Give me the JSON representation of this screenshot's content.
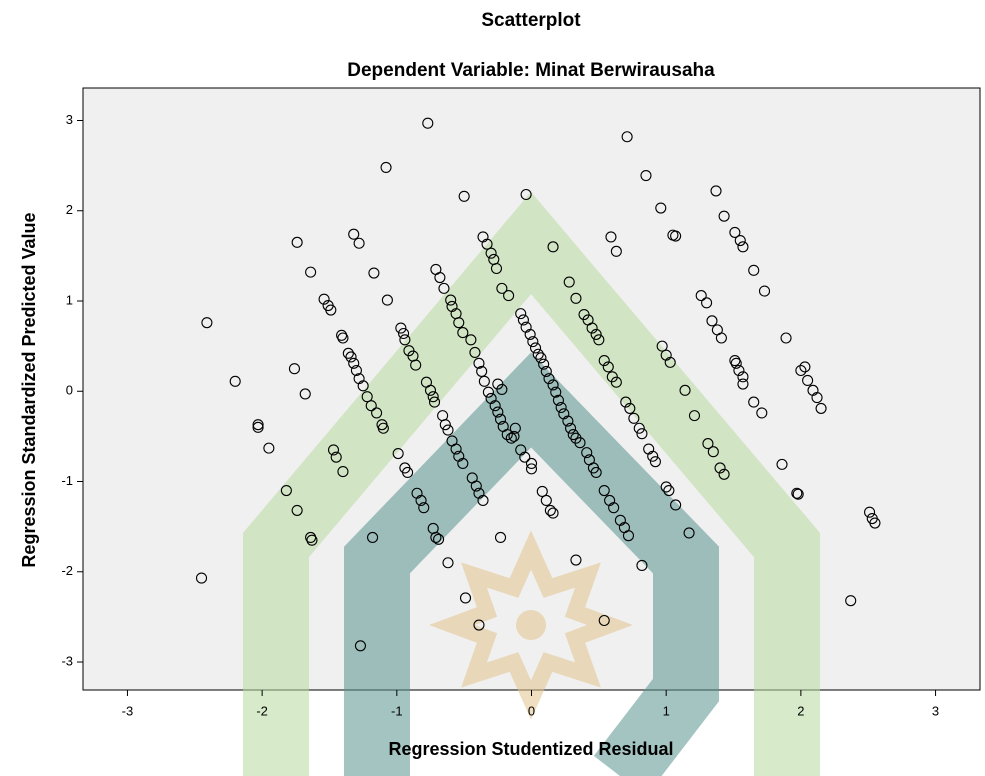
{
  "chart_data": {
    "type": "scatter",
    "title": "Scatterplot",
    "subtitle": "Dependent Variable: Minat Berwirausaha",
    "xlabel": "Regression Studentized Residual",
    "ylabel": "Regression Standardized Predicted Value",
    "marker_color": "#000000",
    "xlim": [
      -3.33,
      3.33
    ],
    "ylim": [
      -3.31,
      3.36
    ],
    "xticks": [
      -3,
      -2,
      -1,
      0,
      1,
      2,
      3
    ],
    "yticks": [
      -3,
      -2,
      -1,
      0,
      1,
      2,
      3
    ],
    "x": [
      -2.41,
      -2.2,
      -2.45,
      -2.03,
      -2.03,
      -1.95,
      -1.82,
      -1.74,
      -1.74,
      -1.64,
      -1.76,
      -1.68,
      -1.64,
      -1.63,
      -1.54,
      -1.51,
      -1.49,
      -1.41,
      -1.4,
      -1.36,
      -1.34,
      -1.32,
      -1.3,
      -1.28,
      -1.25,
      -1.22,
      -1.19,
      -1.15,
      -1.11,
      -1.1,
      -1.47,
      -1.45,
      -1.4,
      -1.32,
      -1.28,
      -1.17,
      -1.07,
      -1.08,
      -1.18,
      -1.27,
      -0.99,
      -0.94,
      -0.92,
      -0.97,
      -0.95,
      -0.94,
      -0.91,
      -0.88,
      -0.86,
      -0.85,
      -0.82,
      -0.8,
      -0.77,
      -0.73,
      -0.71,
      -0.69,
      -0.71,
      -0.68,
      -0.65,
      -0.78,
      -0.75,
      -0.73,
      -0.72,
      -0.62,
      -0.66,
      -0.64,
      -0.62,
      -0.6,
      -0.59,
      -0.56,
      -0.54,
      -0.51,
      -0.59,
      -0.56,
      -0.54,
      -0.51,
      -0.5,
      -0.49,
      -0.45,
      -0.42,
      -0.39,
      -0.37,
      -0.35,
      -0.32,
      -0.44,
      -0.41,
      -0.39,
      -0.36,
      -0.39,
      -0.36,
      -0.33,
      -0.3,
      -0.28,
      -0.26,
      -0.22,
      -0.17,
      -0.3,
      -0.27,
      -0.25,
      -0.23,
      -0.21,
      -0.18,
      -0.15,
      -0.23,
      -0.25,
      -0.22,
      -0.12,
      -0.13,
      -0.04,
      -0.08,
      -0.05,
      0.0,
      0.0,
      0.08,
      0.11,
      0.14,
      0.16,
      -0.08,
      -0.06,
      -0.04,
      -0.01,
      0.01,
      0.03,
      0.05,
      0.07,
      0.09,
      0.11,
      0.13,
      0.16,
      0.18,
      0.2,
      0.22,
      0.24,
      0.27,
      0.29,
      0.31,
      0.33,
      0.36,
      0.16,
      0.28,
      0.33,
      0.39,
      0.42,
      0.45,
      0.48,
      0.5,
      0.41,
      0.43,
      0.46,
      0.48,
      0.33,
      0.54,
      0.57,
      0.6,
      0.63,
      0.54,
      0.58,
      0.61,
      0.54,
      0.59,
      0.63,
      0.66,
      0.69,
      0.72,
      0.7,
      0.73,
      0.76,
      0.8,
      0.82,
      0.71,
      0.82,
      0.85,
      0.87,
      0.9,
      0.92,
      0.96,
      0.97,
      1.0,
      1.03,
      1.0,
      1.02,
      1.05,
      1.07,
      1.07,
      1.14,
      1.17,
      1.21,
      1.26,
      1.3,
      1.31,
      1.35,
      1.34,
      1.38,
      1.41,
      1.4,
      1.43,
      1.37,
      1.43,
      1.51,
      1.55,
      1.57,
      1.51,
      1.52,
      1.54,
      1.57,
      1.57,
      1.65,
      1.65,
      1.71,
      1.73,
      1.86,
      1.89,
      1.97,
      1.98,
      2.0,
      2.03,
      2.05,
      2.09,
      2.12,
      2.15,
      2.37,
      2.51,
      2.53,
      2.55
    ],
    "values": [
      0.76,
      0.11,
      -2.07,
      -0.37,
      -0.4,
      -0.63,
      -1.1,
      -1.32,
      1.65,
      1.32,
      0.25,
      -0.03,
      -1.62,
      -1.65,
      1.02,
      0.95,
      0.9,
      0.62,
      0.59,
      0.42,
      0.38,
      0.31,
      0.23,
      0.14,
      0.06,
      -0.06,
      -0.16,
      -0.24,
      -0.37,
      -0.41,
      -0.65,
      -0.73,
      -0.89,
      1.74,
      1.64,
      1.31,
      1.01,
      2.48,
      -1.62,
      -2.82,
      -0.69,
      -0.85,
      -0.9,
      0.7,
      0.64,
      0.57,
      0.45,
      0.39,
      0.29,
      -1.13,
      -1.21,
      -1.29,
      2.97,
      -1.52,
      -1.62,
      -1.64,
      1.35,
      1.26,
      1.14,
      0.1,
      0.01,
      -0.06,
      -0.12,
      -1.9,
      -0.27,
      -0.37,
      -0.43,
      1.01,
      0.94,
      0.86,
      0.76,
      0.65,
      -0.55,
      -0.64,
      -0.72,
      -0.8,
      2.16,
      -2.29,
      0.57,
      0.43,
      0.31,
      0.22,
      0.11,
      -0.01,
      -0.96,
      -1.05,
      -1.13,
      -1.21,
      -2.59,
      1.71,
      1.63,
      1.53,
      1.46,
      1.36,
      1.14,
      1.06,
      -0.08,
      -0.16,
      -0.23,
      -0.31,
      -0.39,
      -0.48,
      -0.52,
      -1.62,
      0.08,
      0.02,
      -0.41,
      -0.5,
      2.18,
      -0.65,
      -0.73,
      -0.8,
      -0.86,
      -1.11,
      -1.21,
      -1.32,
      -1.35,
      0.86,
      0.79,
      0.71,
      0.63,
      0.55,
      0.48,
      0.41,
      0.37,
      0.3,
      0.22,
      0.14,
      0.07,
      -0.01,
      -0.1,
      -0.18,
      -0.25,
      -0.33,
      -0.41,
      -0.48,
      -0.52,
      -0.57,
      1.6,
      1.21,
      1.03,
      0.85,
      0.79,
      0.7,
      0.63,
      0.57,
      -0.68,
      -0.76,
      -0.85,
      -0.9,
      -1.87,
      0.34,
      0.27,
      0.16,
      0.1,
      -1.1,
      -1.21,
      -1.29,
      -2.54,
      1.71,
      1.55,
      -1.43,
      -1.51,
      -1.6,
      -0.12,
      -0.19,
      -0.3,
      -0.41,
      -0.47,
      2.82,
      -1.93,
      2.39,
      -0.64,
      -0.72,
      -0.78,
      2.03,
      0.5,
      0.4,
      0.32,
      -1.06,
      -1.1,
      1.73,
      1.72,
      -1.26,
      0.01,
      -1.57,
      -0.27,
      1.06,
      0.98,
      -0.58,
      -0.67,
      0.78,
      0.68,
      0.59,
      -0.85,
      -0.92,
      2.22,
      1.94,
      1.76,
      1.67,
      1.6,
      0.34,
      0.31,
      0.23,
      0.16,
      0.08,
      1.34,
      -0.12,
      -0.24,
      1.11,
      -0.81,
      0.59,
      -1.13,
      -1.14,
      0.23,
      0.27,
      0.12,
      0.01,
      -0.07,
      -0.19,
      -2.32,
      -1.34,
      -1.41,
      -1.46
    ]
  }
}
